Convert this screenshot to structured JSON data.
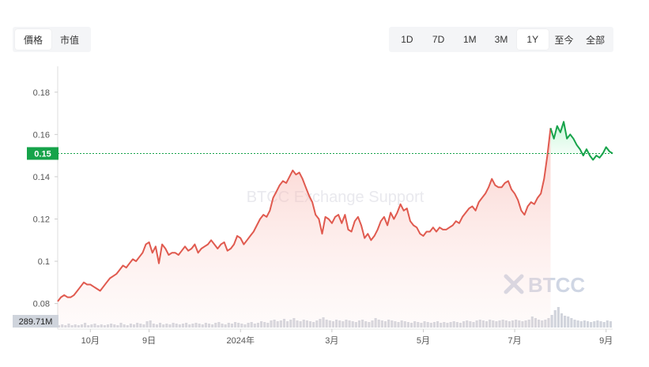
{
  "toggles": {
    "left": [
      {
        "label": "價格",
        "active": true
      },
      {
        "label": "市值",
        "active": false
      }
    ],
    "right": [
      {
        "label": "1D",
        "active": false
      },
      {
        "label": "7D",
        "active": false
      },
      {
        "label": "1M",
        "active": false
      },
      {
        "label": "3M",
        "active": false
      },
      {
        "label": "1Y",
        "active": true
      },
      {
        "label": "至今",
        "active": false
      },
      {
        "label": "全部",
        "active": false
      }
    ]
  },
  "watermark": "BTCC Exchange Support",
  "logo_text": "BTCC",
  "colors": {
    "down": "#e05a4f",
    "up": "#16a34a",
    "price_badge": "#16a34a",
    "volume_badge": "#cfd4dc",
    "axis_text": "#555555"
  },
  "chart_data": {
    "type": "area",
    "y_ticks": [
      {
        "value": 0.08,
        "label": "0.08"
      },
      {
        "value": 0.1,
        "label": "0.1"
      },
      {
        "value": 0.12,
        "label": "0.12"
      },
      {
        "value": 0.14,
        "label": "0.14"
      },
      {
        "value": 0.16,
        "label": "0.16"
      },
      {
        "value": 0.18,
        "label": "0.18"
      }
    ],
    "ylim": [
      0.075,
      0.19
    ],
    "x_ticks": [
      {
        "index": 10,
        "label": "10月"
      },
      {
        "index": 28,
        "label": "9日"
      },
      {
        "index": 56,
        "label": "2024年"
      },
      {
        "index": 84,
        "label": "3月"
      },
      {
        "index": 112,
        "label": "5月"
      },
      {
        "index": 140,
        "label": "7月"
      },
      {
        "index": 168,
        "label": "9月"
      }
    ],
    "current_price": 0.151,
    "current_price_label": "0.15",
    "volume_label": "289.71M",
    "price_series": [
      0.081,
      0.083,
      0.084,
      0.083,
      0.083,
      0.084,
      0.086,
      0.088,
      0.09,
      0.089,
      0.089,
      0.088,
      0.087,
      0.086,
      0.088,
      0.09,
      0.092,
      0.093,
      0.094,
      0.096,
      0.098,
      0.097,
      0.099,
      0.101,
      0.1,
      0.102,
      0.104,
      0.108,
      0.109,
      0.104,
      0.107,
      0.099,
      0.108,
      0.106,
      0.103,
      0.104,
      0.104,
      0.103,
      0.105,
      0.107,
      0.105,
      0.106,
      0.108,
      0.104,
      0.106,
      0.107,
      0.108,
      0.11,
      0.108,
      0.106,
      0.108,
      0.109,
      0.105,
      0.106,
      0.108,
      0.112,
      0.111,
      0.108,
      0.11,
      0.112,
      0.114,
      0.117,
      0.12,
      0.122,
      0.121,
      0.124,
      0.13,
      0.133,
      0.136,
      0.138,
      0.137,
      0.14,
      0.143,
      0.141,
      0.142,
      0.139,
      0.135,
      0.131,
      0.128,
      0.122,
      0.12,
      0.113,
      0.121,
      0.12,
      0.118,
      0.121,
      0.122,
      0.118,
      0.122,
      0.115,
      0.114,
      0.119,
      0.121,
      0.117,
      0.111,
      0.113,
      0.11,
      0.112,
      0.115,
      0.119,
      0.121,
      0.117,
      0.123,
      0.12,
      0.123,
      0.127,
      0.124,
      0.125,
      0.119,
      0.117,
      0.116,
      0.113,
      0.112,
      0.114,
      0.114,
      0.116,
      0.114,
      0.116,
      0.115,
      0.115,
      0.116,
      0.117,
      0.119,
      0.118,
      0.121,
      0.123,
      0.125,
      0.126,
      0.124,
      0.128,
      0.13,
      0.132,
      0.135,
      0.139,
      0.136,
      0.135,
      0.135,
      0.137,
      0.138,
      0.134,
      0.132,
      0.129,
      0.124,
      0.122,
      0.126,
      0.128,
      0.127,
      0.13,
      0.132,
      0.139,
      0.15,
      0.163
    ],
    "up_series": [
      0.163,
      0.158,
      0.164,
      0.161,
      0.166,
      0.158,
      0.16,
      0.158,
      0.155,
      0.153,
      0.15,
      0.153,
      0.15,
      0.148,
      0.15,
      0.149,
      0.151,
      0.154,
      0.152,
      0.151
    ],
    "volume": [
      3,
      4,
      3,
      5,
      3,
      4,
      3,
      4,
      6,
      3,
      4,
      5,
      3,
      4,
      3,
      4,
      5,
      4,
      3,
      6,
      4,
      3,
      5,
      4,
      6,
      5,
      4,
      8,
      9,
      5,
      4,
      6,
      4,
      5,
      4,
      6,
      5,
      4,
      5,
      6,
      4,
      5,
      6,
      5,
      4,
      6,
      5,
      4,
      6,
      7,
      5,
      4,
      6,
      5,
      7,
      6,
      5,
      4,
      6,
      7,
      5,
      6,
      8,
      7,
      6,
      9,
      10,
      8,
      9,
      11,
      8,
      10,
      12,
      9,
      8,
      10,
      9,
      8,
      7,
      9,
      11,
      13,
      10,
      9,
      8,
      10,
      9,
      8,
      10,
      9,
      8,
      7,
      9,
      10,
      8,
      7,
      9,
      12,
      10,
      9,
      8,
      10,
      9,
      8,
      7,
      9,
      8,
      7,
      6,
      8,
      7,
      6,
      8,
      7,
      6,
      7,
      8,
      6,
      7,
      6,
      7,
      8,
      7,
      6,
      8,
      9,
      8,
      7,
      9,
      10,
      9,
      8,
      10,
      9,
      8,
      9,
      10,
      9,
      8,
      9,
      10,
      9,
      8,
      9,
      10,
      14,
      12,
      10,
      9,
      10,
      12,
      16,
      22,
      26,
      18,
      15,
      14,
      12,
      10,
      9,
      8,
      9,
      8,
      7,
      8,
      9,
      8,
      7,
      9,
      8
    ],
    "volume_max": 30
  }
}
